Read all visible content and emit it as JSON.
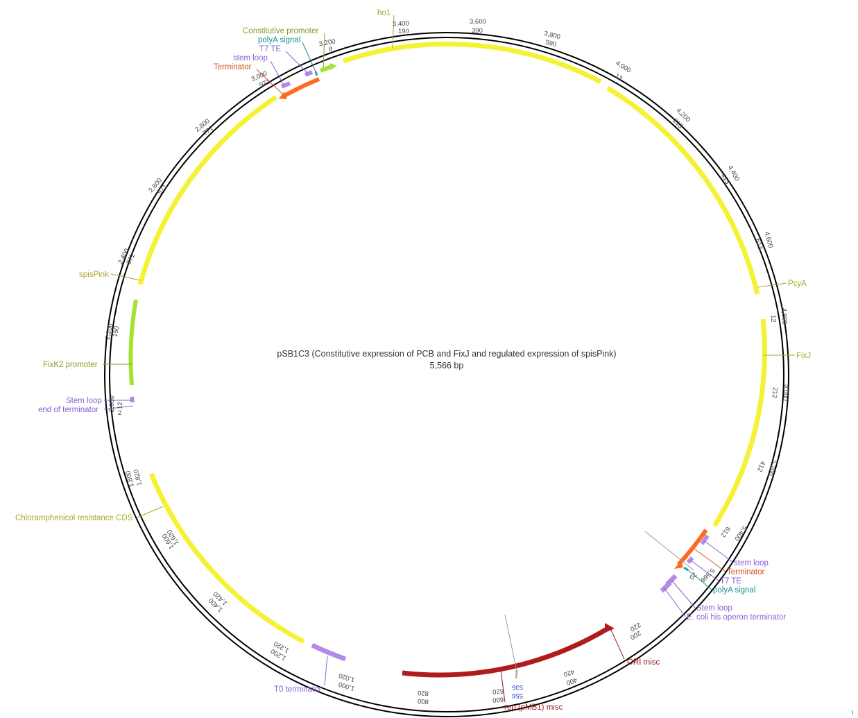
{
  "map": {
    "title": "pSB1C3 (Constitutive expression of PCB and FixJ and regulated expression of spisPink)",
    "length_label": "5,566 bp",
    "total_bp": 5566
  },
  "features": [
    {
      "id": "ho1",
      "label": "ho1",
      "color": "#f5f235",
      "label_color": "#a9a62a"
    },
    {
      "id": "pcya",
      "label": "PcyA",
      "color": "#f5f235",
      "label_color": "#a9a62a"
    },
    {
      "id": "fixj",
      "label": "FixJ",
      "color": "#f5f235",
      "label_color": "#a9a62a"
    },
    {
      "id": "spispink",
      "label": "spisPink",
      "color": "#f5f235",
      "label_color": "#a9a62a"
    },
    {
      "id": "cmr",
      "label": "Chloramphenicol resistance CDS",
      "color": "#f5f235",
      "label_color": "#a9a62a"
    },
    {
      "id": "fixk2",
      "label": "FixK2 promoter",
      "color": "#a6e22e",
      "label_color": "#7ea32a"
    },
    {
      "id": "const-prom",
      "label": "Constitutive promoter",
      "color": "#a6e22e",
      "label_color": "#7ea32a"
    },
    {
      "id": "polya-top",
      "label": "polyA signal",
      "color": "#2aa7a7",
      "label_color": "#1a8f96"
    },
    {
      "id": "t7te-top",
      "label": "T7 TE",
      "color": "#b48ae8",
      "label_color": "#8a5fd1"
    },
    {
      "id": "stemloop-top",
      "label": "stem loop",
      "color": "#b48ae8",
      "label_color": "#8a5fd1"
    },
    {
      "id": "term-top",
      "label": "Terminator",
      "color": "#ff6a20",
      "label_color": "#d2521a"
    },
    {
      "id": "stemloop-left",
      "label": "Stem loop",
      "color": "#b48ae8",
      "label_color": "#8a5fd1"
    },
    {
      "id": "endterm-left",
      "label": "end of terminator",
      "color": "#b48ae8",
      "label_color": "#8a5fd1"
    },
    {
      "id": "t0",
      "label": "T0 terminator",
      "color": "#b48ae8",
      "label_color": "#8a5fd1"
    },
    {
      "id": "rep",
      "label": "rep (pMB1) misc",
      "color": "#b01c1c",
      "label_color": "#9a1a1a"
    },
    {
      "id": "ori",
      "label": "ORI misc",
      "color": "#b01c1c",
      "label_color": "#9a1a1a"
    },
    {
      "id": "stemloop-r1",
      "label": "stem loop",
      "color": "#b48ae8",
      "label_color": "#8a5fd1"
    },
    {
      "id": "term-r",
      "label": "Terminator",
      "color": "#ff6a20",
      "label_color": "#d2521a"
    },
    {
      "id": "t7te-r",
      "label": "T7 TE",
      "color": "#b48ae8",
      "label_color": "#8a5fd1"
    },
    {
      "id": "polya-r",
      "label": "polyA signal",
      "color": "#2aa7a7",
      "label_color": "#1a8f96"
    },
    {
      "id": "stemloop-r2",
      "label": "Stem loop",
      "color": "#b48ae8",
      "label_color": "#8a5fd1"
    },
    {
      "id": "ecoli-his",
      "label": "E. coli his operon terminator",
      "color": "#b48ae8",
      "label_color": "#8a5fd1"
    }
  ],
  "ticks": [
    {
      "outer": "3,400",
      "inner": "190"
    },
    {
      "outer": "3,600",
      "inner": "390"
    },
    {
      "outer": "3,800",
      "inner": "590"
    },
    {
      "outer": "4,000",
      "inner": "13"
    },
    {
      "outer": "4,200",
      "inner": "213"
    },
    {
      "outer": "4,400",
      "inner": "413"
    },
    {
      "outer": "4,600",
      "inner": "613"
    },
    {
      "outer": "4,800",
      "inner": "12"
    },
    {
      "outer": "5,000",
      "inner": "212"
    },
    {
      "outer": "5,200",
      "inner": "412"
    },
    {
      "outer": "5,400",
      "inner": "612"
    },
    {
      "outer": "5,566",
      "inner": "20"
    },
    {
      "outer": "200",
      "inner": "220"
    },
    {
      "outer": "400",
      "inner": "420"
    },
    {
      "outer": "600",
      "inner": "620"
    },
    {
      "outer": "800",
      "inner": "820"
    },
    {
      "outer": "1,000",
      "inner": "1,020"
    },
    {
      "outer": "1,200",
      "inner": "1,220"
    },
    {
      "outer": "1,400",
      "inner": "1,420"
    },
    {
      "outer": "1,600",
      "inner": "1,620"
    },
    {
      "outer": "1,800",
      "inner": "1,820"
    },
    {
      "outer": "2,000",
      "inner": "12"
    },
    {
      "outer": "2,200",
      "inner": "150"
    },
    {
      "outer": "2,400",
      "inner": "371"
    },
    {
      "outer": "2,600",
      "inner": "571"
    },
    {
      "outer": "2,800",
      "inner": "771"
    },
    {
      "outer": "3,000",
      "inner": "971"
    },
    {
      "outer": "3,200",
      "inner": "8"
    }
  ],
  "special_ticks": [
    {
      "label": "536",
      "color": "#1f3fd6"
    },
    {
      "label": "556",
      "color": "#1f3fd6"
    }
  ],
  "extra_labels": {
    "left_small": "2",
    "top_right_corner": "i"
  }
}
